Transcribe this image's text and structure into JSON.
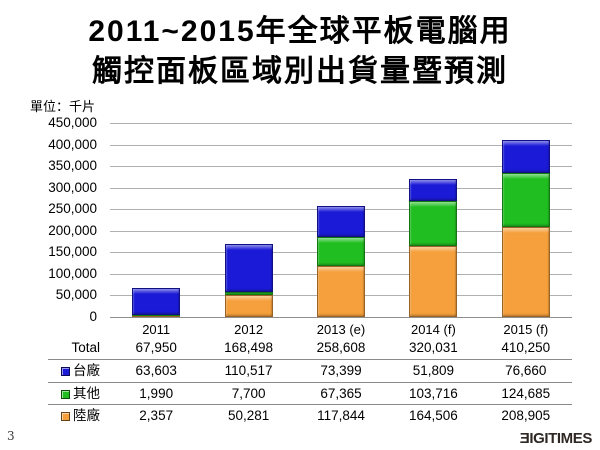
{
  "title": {
    "line1": "2011~2015年全球平板電腦用",
    "line2": "觸控面板區域別出貨量暨預測"
  },
  "unit_label": "單位：千片",
  "chart_data": {
    "type": "bar",
    "stacked": true,
    "title": "2011~2015年全球平板電腦用觸控面板區域別出貨量暨預測",
    "unit": "千片",
    "categories": [
      "2011",
      "2012",
      "2013 (e)",
      "2014 (f)",
      "2015 (f)"
    ],
    "series": [
      {
        "name": "陸廠",
        "color": "#F5A03C",
        "values": [
          2357,
          50281,
          117844,
          164506,
          208905
        ]
      },
      {
        "name": "其他",
        "color": "#21BE21",
        "values": [
          1990,
          7700,
          67365,
          103716,
          124685
        ]
      },
      {
        "name": "台廠",
        "color": "#1B1BD7",
        "values": [
          63603,
          110517,
          73399,
          51809,
          76660
        ]
      }
    ],
    "totals": [
      67950,
      168498,
      258608,
      320031,
      410250
    ],
    "ylim": [
      0,
      450000
    ],
    "ytick_step": 50000,
    "ytick_labels": [
      "450,000",
      "400,000",
      "350,000",
      "300,000",
      "250,000",
      "200,000",
      "150,000",
      "100,000",
      "50,000",
      "0"
    ],
    "grid": true,
    "legend_position": "table-below",
    "stack_order_bottom_to_top": [
      "陸廠",
      "其他",
      "台廠"
    ]
  },
  "table": {
    "rows": [
      {
        "label": "Total",
        "swatch": null,
        "values": [
          "67,950",
          "168,498",
          "258,608",
          "320,031",
          "410,250"
        ]
      },
      {
        "label": "台廠",
        "swatch": "#1B1BD7",
        "values": [
          "63,603",
          "110,517",
          "73,399",
          "51,809",
          "76,660"
        ]
      },
      {
        "label": "其他",
        "swatch": "#21BE21",
        "values": [
          "1,990",
          "7,700",
          "67,365",
          "103,716",
          "124,685"
        ]
      },
      {
        "label": "陸廠",
        "swatch": "#F5A03C",
        "values": [
          "2,357",
          "50,281",
          "117,844",
          "164,506",
          "208,905"
        ]
      }
    ]
  },
  "footer": {
    "page_number": "3",
    "logo": "DIGITIMES"
  }
}
